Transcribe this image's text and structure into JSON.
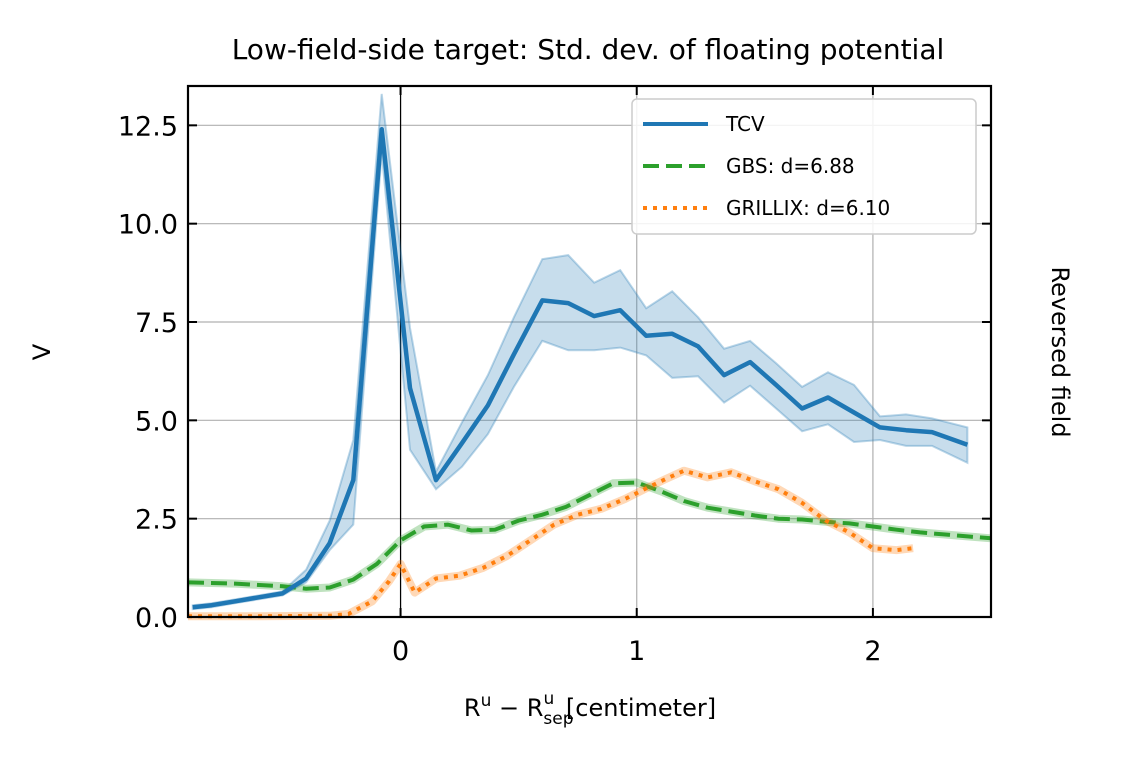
{
  "chart_data": {
    "type": "line",
    "title": "Low-field-side target: Std. dev. of floating potential",
    "xlabel": {
      "base": "R",
      "sup1": "u",
      "minus": " − R",
      "sub": "sep",
      "sup2": "u",
      "unit": " [centimeter]"
    },
    "ylabel": "V",
    "side_label": "Reversed field",
    "xlim": [
      -0.9,
      2.5
    ],
    "ylim": [
      0,
      13.5
    ],
    "xticks": [
      0,
      1,
      2
    ],
    "xtick_labels": [
      "0",
      "1",
      "2"
    ],
    "yticks": [
      0.0,
      2.5,
      5.0,
      7.5,
      10.0,
      12.5
    ],
    "ytick_labels": [
      "0.0",
      "2.5",
      "5.0",
      "7.5",
      "10.0",
      "12.5"
    ],
    "grid": true,
    "vline_x": 0,
    "legend_position": "top-right",
    "series": [
      {
        "name": "TCV",
        "style": "solid",
        "color": "#1f77b4",
        "band_color": "#1f77b4",
        "x": [
          -0.88,
          -0.8,
          -0.7,
          -0.6,
          -0.5,
          -0.4,
          -0.3,
          -0.2,
          -0.08,
          0.04,
          0.15,
          0.26,
          0.37,
          0.48,
          0.6,
          0.71,
          0.82,
          0.93,
          1.04,
          1.15,
          1.26,
          1.37,
          1.48,
          1.59,
          1.7,
          1.81,
          1.92,
          2.03,
          2.14,
          2.25,
          2.4
        ],
        "y": [
          0.25,
          0.3,
          0.4,
          0.5,
          0.6,
          0.98,
          1.88,
          3.48,
          12.4,
          5.82,
          3.48,
          4.42,
          5.38,
          6.68,
          8.05,
          7.98,
          7.65,
          7.8,
          7.15,
          7.2,
          6.88,
          6.15,
          6.48,
          5.9,
          5.3,
          5.58,
          5.2,
          4.82,
          4.75,
          4.7,
          4.38
        ],
        "lower": [
          0.2,
          0.25,
          0.35,
          0.45,
          0.55,
          0.88,
          1.7,
          2.35,
          11.8,
          4.25,
          3.25,
          3.82,
          4.65,
          5.85,
          7.02,
          6.78,
          6.78,
          6.85,
          6.65,
          6.08,
          6.12,
          5.45,
          5.88,
          5.3,
          4.72,
          4.9,
          4.45,
          4.5,
          4.35,
          4.35,
          3.92
        ],
        "upper": [
          0.3,
          0.35,
          0.45,
          0.55,
          0.65,
          1.2,
          2.45,
          4.5,
          13.3,
          7.35,
          3.7,
          4.95,
          6.15,
          7.62,
          9.1,
          9.2,
          8.5,
          8.82,
          7.85,
          8.28,
          7.62,
          6.82,
          7.02,
          6.45,
          5.85,
          6.22,
          5.9,
          5.1,
          5.15,
          5.05,
          4.82
        ]
      },
      {
        "name": "GBS: d=6.88",
        "style": "dashed",
        "color": "#2ca02c",
        "x": [
          -0.9,
          -0.7,
          -0.5,
          -0.4,
          -0.3,
          -0.2,
          -0.1,
          0.0,
          0.1,
          0.2,
          0.3,
          0.4,
          0.5,
          0.6,
          0.7,
          0.8,
          0.9,
          1.0,
          1.1,
          1.2,
          1.3,
          1.4,
          1.5,
          1.6,
          1.7,
          1.8,
          1.9,
          2.0,
          2.1,
          2.2,
          2.3,
          2.4,
          2.5
        ],
        "y": [
          0.88,
          0.85,
          0.78,
          0.72,
          0.75,
          0.95,
          1.35,
          1.95,
          2.3,
          2.35,
          2.2,
          2.22,
          2.45,
          2.6,
          2.8,
          3.1,
          3.4,
          3.42,
          3.2,
          2.95,
          2.78,
          2.68,
          2.58,
          2.5,
          2.48,
          2.42,
          2.38,
          2.3,
          2.22,
          2.15,
          2.1,
          2.05,
          2.0
        ]
      },
      {
        "name": "GRILLIX: d=6.10",
        "style": "dotted",
        "color": "#ff7f0e",
        "x": [
          -0.9,
          -0.6,
          -0.3,
          -0.22,
          -0.12,
          -0.05,
          0.0,
          0.06,
          0.15,
          0.25,
          0.35,
          0.45,
          0.55,
          0.65,
          0.75,
          0.85,
          0.95,
          1.05,
          1.12,
          1.2,
          1.3,
          1.4,
          1.5,
          1.6,
          1.7,
          1.8,
          1.9,
          2.0,
          2.1,
          2.17
        ],
        "y": [
          0.02,
          0.02,
          0.03,
          0.08,
          0.4,
          0.9,
          1.35,
          0.62,
          0.98,
          1.05,
          1.25,
          1.55,
          1.95,
          2.35,
          2.6,
          2.75,
          3.0,
          3.3,
          3.5,
          3.72,
          3.55,
          3.68,
          3.45,
          3.25,
          2.9,
          2.45,
          2.15,
          1.75,
          1.7,
          1.75
        ]
      }
    ]
  }
}
